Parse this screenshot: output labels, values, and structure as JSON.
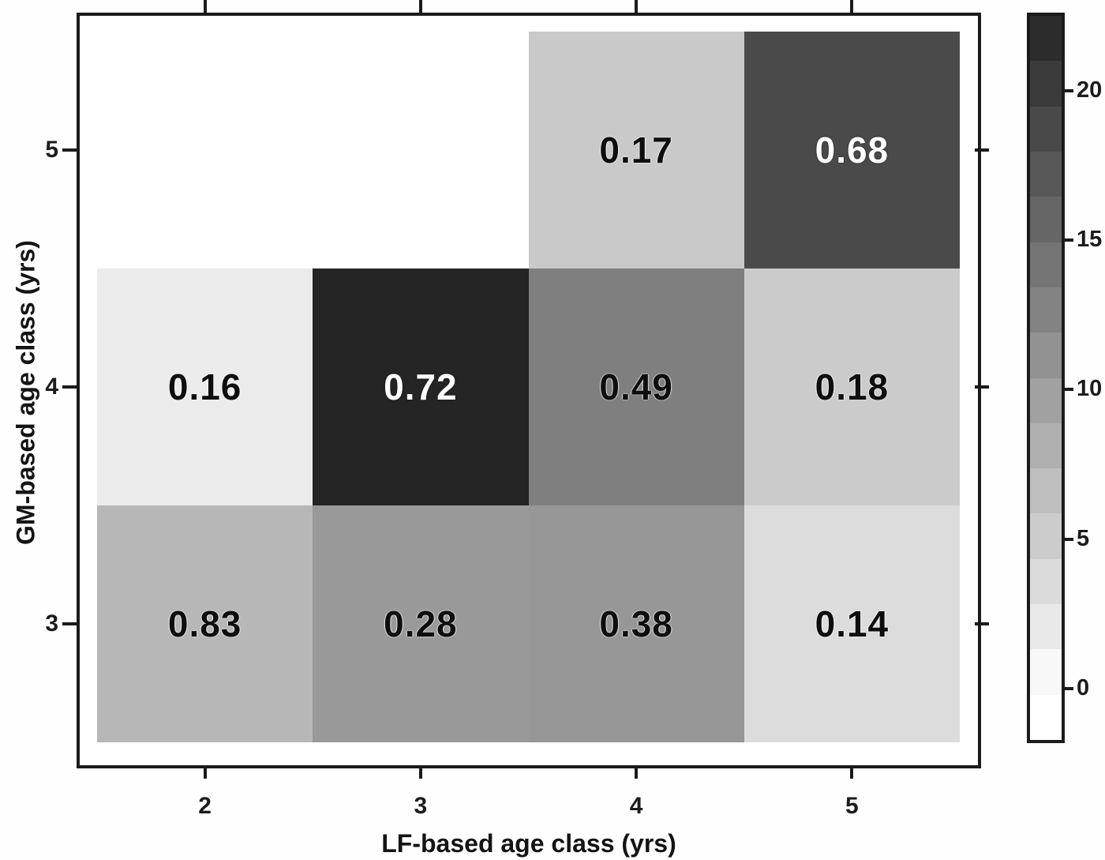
{
  "chart_data": {
    "type": "heatmap",
    "title": "",
    "xlabel": "LF-based age class (yrs)",
    "ylabel": "GM-based age class (yrs)",
    "x_categories": [
      "2",
      "3",
      "4",
      "5"
    ],
    "y_categories": [
      "3",
      "4",
      "5"
    ],
    "grid": false,
    "rows_top_to_bottom": [
      {
        "y": "5",
        "labels": [
          "",
          "",
          "0.17",
          "0.68"
        ],
        "colors": [
          "#ffffff",
          "#ffffff",
          "#c9c9c9",
          "#4a4a4a"
        ],
        "label_styles": [
          "dark-text",
          "dark-text",
          "dark-text",
          "light-text"
        ]
      },
      {
        "y": "4",
        "labels": [
          "0.16",
          "0.72",
          "0.49",
          "0.18"
        ],
        "colors": [
          "#ebebeb",
          "#252525",
          "#7f7f7f",
          "#cbcbcb"
        ],
        "label_styles": [
          "dark-text",
          "light-text",
          "dark-text",
          "dark-text"
        ]
      },
      {
        "y": "3",
        "labels": [
          "0.83",
          "0.28",
          "0.38",
          "0.14"
        ],
        "colors": [
          "#b7b7b7",
          "#999999",
          "#979797",
          "#dcdcdc"
        ],
        "label_styles": [
          "dark-text",
          "dark-text",
          "dark-text",
          "dark-text"
        ]
      }
    ],
    "colorbar": {
      "orientation": "vertical",
      "dark_at_top": true,
      "min_value": -1.5,
      "max_value": 22.5,
      "levels": 16,
      "tick_values": [
        0,
        5,
        10,
        15,
        20
      ],
      "tick_labels": [
        "0",
        "5",
        "10",
        "15",
        "20"
      ],
      "low_color": "#ffffff",
      "high_color": "#252525"
    },
    "axis_color": "#1b1b1b",
    "background_color": "#ffffff"
  }
}
